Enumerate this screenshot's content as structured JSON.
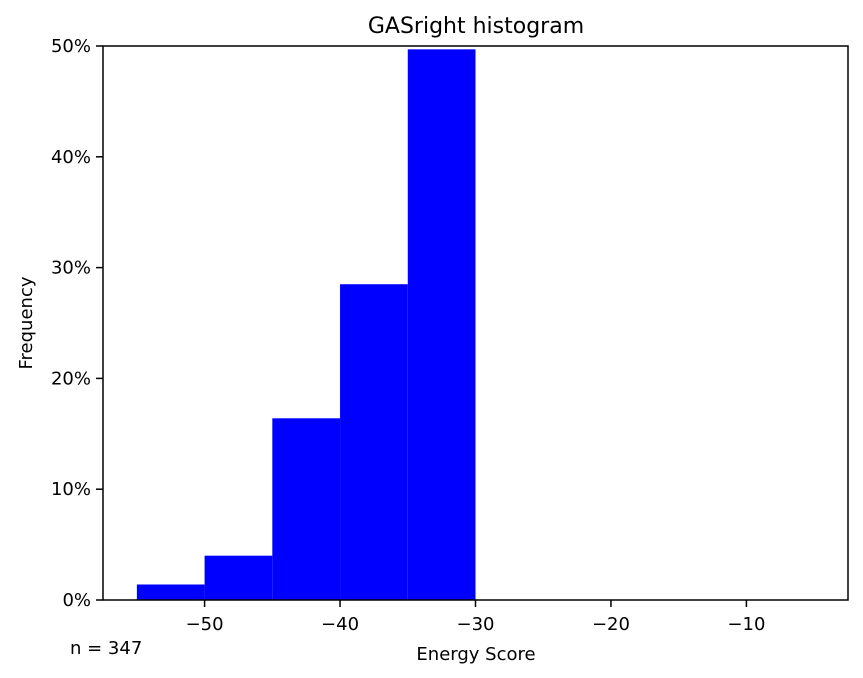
{
  "chart_data": {
    "type": "bar",
    "title": "GASright histogram",
    "xlabel": "Energy Score",
    "ylabel": "Frequency",
    "xlim": [
      -57.5,
      -2.5
    ],
    "ylim": [
      0,
      50
    ],
    "bin_edges": [
      -55,
      -50,
      -45,
      -40,
      -35,
      -30
    ],
    "values": [
      1.4,
      4.0,
      16.4,
      28.5,
      49.7
    ],
    "value_unit": "%",
    "xticks": [
      -50,
      -40,
      -30,
      -20,
      -10
    ],
    "xtick_labels": [
      "−50",
      "−40",
      "−30",
      "−20",
      "−10"
    ],
    "yticks": [
      0,
      10,
      20,
      30,
      40,
      50
    ],
    "ytick_labels": [
      "0%",
      "10%",
      "20%",
      "30%",
      "40%",
      "50%"
    ],
    "bar_color": "#0000ff",
    "grid": false
  },
  "annotation": {
    "sample_size": "n = 347"
  }
}
